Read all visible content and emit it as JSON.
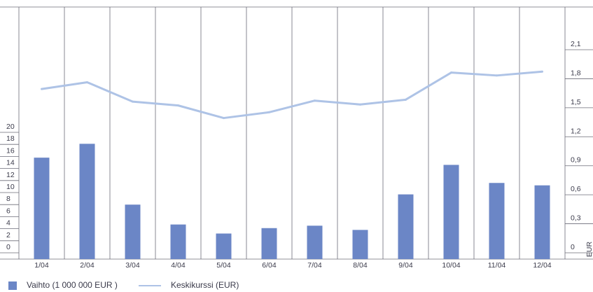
{
  "chart_data": {
    "type": "bar",
    "categories": [
      "1/04",
      "2/04",
      "3/04",
      "4/04",
      "5/04",
      "6/04",
      "7/04",
      "8/04",
      "9/04",
      "10/04",
      "11/04",
      "12/04"
    ],
    "series": [
      {
        "name": "Vaihto (1 000 000 EUR )",
        "type": "bar",
        "axis": "left",
        "color": "#6b86c6",
        "values": [
          15.1,
          17.4,
          7.3,
          4.0,
          2.5,
          3.4,
          3.8,
          3.1,
          9.0,
          13.9,
          10.9,
          10.5
        ]
      },
      {
        "name": "Keskikurssi (EUR)",
        "type": "line",
        "axis": "right",
        "color": "#aec3e6",
        "values": [
          1.65,
          1.72,
          1.52,
          1.48,
          1.35,
          1.41,
          1.53,
          1.49,
          1.54,
          1.82,
          1.79,
          1.83
        ]
      }
    ],
    "yleft": {
      "ticks": [
        "0",
        "2",
        "4",
        "6",
        "8",
        "10",
        "12",
        "14",
        "16",
        "18",
        "20"
      ],
      "ylim": [
        0,
        20
      ]
    },
    "yright": {
      "ticks": [
        "0",
        "0,3",
        "0,6",
        "0,9",
        "1,2",
        "1,5",
        "1,8",
        "2,1"
      ],
      "ylim": [
        0,
        2.1
      ],
      "label": "EUR"
    },
    "grid": true,
    "legend_position": "bottom-left"
  }
}
